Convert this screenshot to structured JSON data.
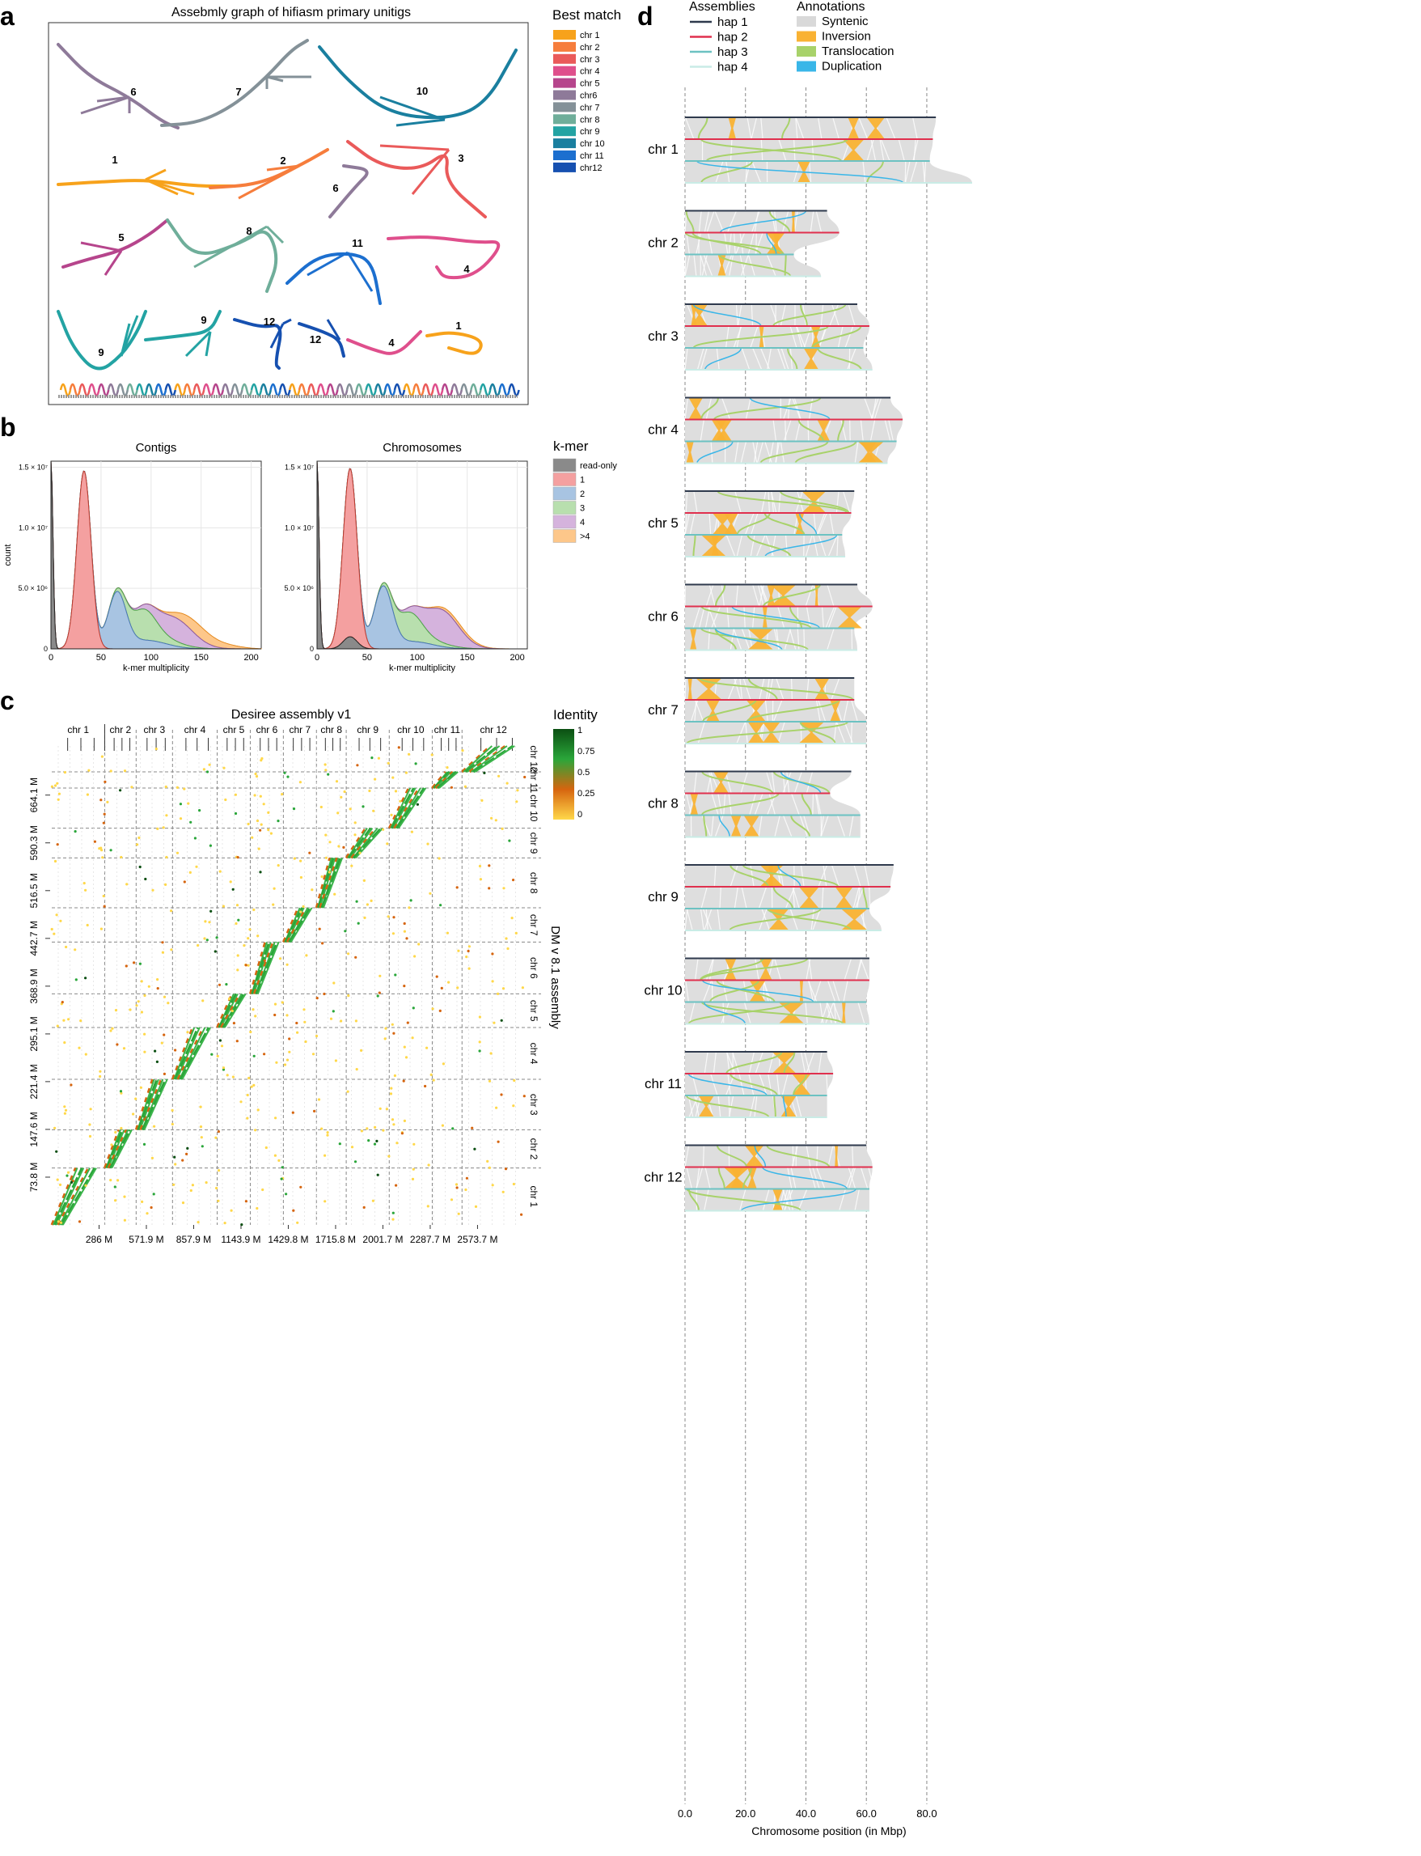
{
  "panel_labels": {
    "a": "a",
    "b": "b",
    "c": "c",
    "d": "d"
  },
  "colors": {
    "chr_palette": [
      "#f7a21b",
      "#f67d3c",
      "#ea5a5a",
      "#df4f8c",
      "#b6458c",
      "#8e7a99",
      "#849198",
      "#6fae9a",
      "#23a3a3",
      "#1a7f9f",
      "#1c6fcf",
      "#1650b0"
    ]
  },
  "chart_data": [
    {
      "panel": "a",
      "type": "other",
      "title": "Assebmly graph of hifiasm primary unitigs",
      "legend_title": "Best match",
      "legend": [
        "chr 1",
        "chr 2",
        "chr 3",
        "chr 4",
        "chr 5",
        "chr6",
        "chr 7",
        "chr 8",
        "chr 9",
        "chr 10",
        "chr 11",
        "chr12"
      ],
      "component_labels": [
        {
          "text": "6",
          "chr": 6
        },
        {
          "text": "7",
          "chr": 7
        },
        {
          "text": "10",
          "chr": 10
        },
        {
          "text": "1",
          "chr": 1
        },
        {
          "text": "2",
          "chr": 2
        },
        {
          "text": "3",
          "chr": 3
        },
        {
          "text": "6",
          "chr": 6
        },
        {
          "text": "5",
          "chr": 5
        },
        {
          "text": "8",
          "chr": 8
        },
        {
          "text": "11",
          "chr": 11
        },
        {
          "text": "4",
          "chr": 4
        },
        {
          "text": "9",
          "chr": 9
        },
        {
          "text": "9",
          "chr": 9
        },
        {
          "text": "12",
          "chr": 12
        },
        {
          "text": "12",
          "chr": 12
        },
        {
          "text": "4",
          "chr": 4
        },
        {
          "text": "1",
          "chr": 1
        }
      ]
    },
    {
      "panel": "b",
      "type": "area",
      "title": "Contigs",
      "xlabel": "k-mer multiplicity",
      "ylabel": "count",
      "xlim": [
        0,
        210
      ],
      "ylim": [
        0,
        15500000
      ],
      "xticks": [
        "0",
        "50",
        "100",
        "150",
        "200"
      ],
      "yticks": [
        "0",
        "5.0 × 10⁶",
        "1.0 × 10⁷",
        "1.5 × 10⁷"
      ],
      "ytick_values": [
        0,
        5000000,
        10000000,
        15000000
      ],
      "series": [
        {
          "name": "read-only",
          "color": "#8a8a8a",
          "peaks": [
            [
              0,
              15500000,
              2
            ]
          ]
        },
        {
          "name": "1",
          "color": "#f4a0a0",
          "peaks": [
            [
              33,
              14700000,
              7
            ]
          ]
        },
        {
          "name": "2",
          "color": "#a8c4e2",
          "peaks": [
            [
              66,
              4500000,
              9
            ],
            [
              95,
              700000,
              20
            ]
          ]
        },
        {
          "name": "3",
          "color": "#b8dfae",
          "peaks": [
            [
              92,
              2200000,
              12
            ],
            [
              110,
              500000,
              20
            ]
          ]
        },
        {
          "name": "4",
          "color": "#d5b3dd",
          "peaks": [
            [
              125,
              1900000,
              18
            ]
          ]
        },
        {
          "name": ">4",
          "color": "#fdc78a",
          "peaks": [
            [
              145,
              1000000,
              16
            ],
            [
              175,
              250000,
              15
            ]
          ]
        }
      ]
    },
    {
      "panel": "b",
      "type": "area",
      "title": "Chromosomes",
      "xlabel": "k-mer multiplicity",
      "ylabel": "",
      "xlim": [
        0,
        210
      ],
      "ylim": [
        0,
        15500000
      ],
      "xticks": [
        "0",
        "50",
        "100",
        "150",
        "200"
      ],
      "yticks": [
        "0",
        "5.0 × 10⁶",
        "1.0 × 10⁷",
        "1.5 × 10⁷"
      ],
      "ytick_values": [
        0,
        5000000,
        10000000,
        15000000
      ],
      "series": [
        {
          "name": "read-only",
          "color": "#8a8a8a",
          "peaks": [
            [
              0,
              15500000,
              2
            ],
            [
              33,
              1000000,
              7
            ]
          ]
        },
        {
          "name": "1",
          "color": "#f4a0a0",
          "peaks": [
            [
              33,
              13900000,
              7
            ]
          ]
        },
        {
          "name": "2",
          "color": "#a8c4e2",
          "peaks": [
            [
              66,
              5000000,
              9
            ],
            [
              95,
              600000,
              20
            ]
          ]
        },
        {
          "name": "3",
          "color": "#b8dfae",
          "peaks": [
            [
              92,
              2100000,
              12
            ],
            [
              110,
              400000,
              20
            ]
          ]
        },
        {
          "name": "4",
          "color": "#d5b3dd",
          "peaks": [
            [
              125,
              2700000,
              17
            ]
          ]
        },
        {
          "name": ">4",
          "color": "#fdc78a",
          "peaks": [
            [
              140,
              300000,
              16
            ]
          ]
        }
      ],
      "legend_title": "k-mer",
      "legend": [
        "read-only",
        "1",
        "2",
        "3",
        "4",
        ">4"
      ]
    },
    {
      "panel": "c",
      "type": "scatter",
      "title": "Desiree assembly v1",
      "xlabel": "",
      "ylabel": "DM v 8.1 assembly",
      "xlim": [
        0,
        2860
      ],
      "ylim": [
        0,
        740
      ],
      "xticks": [
        "286 M",
        "571.9 M",
        "857.9 M",
        "1143.9 M",
        "1429.8 M",
        "1715.8 M",
        "2001.7 M",
        "2287.7 M",
        "2573.7 M"
      ],
      "xtick_values": [
        286,
        571.9,
        857.9,
        1143.9,
        1429.8,
        1715.8,
        2001.7,
        2287.7,
        2573.7
      ],
      "yticks": [
        "73.8 M",
        "147.6 M",
        "221.4 M",
        "295.1 M",
        "368.9 M",
        "442.7 M",
        "516.5 M",
        "590.3 M",
        "664.1 M"
      ],
      "ytick_values": [
        73.8,
        147.6,
        221.4,
        295.1,
        368.9,
        442.7,
        516.5,
        590.3,
        664.1
      ],
      "x_chr_labels": [
        "chr 1",
        "chr 2",
        "chr 3",
        "chr 4",
        "chr 5",
        "chr 6",
        "chr 7",
        "chr 8",
        "chr 9",
        "chr 10",
        "chr 11",
        "chr 12"
      ],
      "x_chr_bounds": [
        0,
        320,
        510,
        730,
        1000,
        1200,
        1400,
        1600,
        1780,
        2040,
        2300,
        2480,
        2860
      ],
      "y_chr_labels": [
        "chr 1",
        "chr 2",
        "chr 3",
        "chr 4",
        "chr 5",
        "chr 6",
        "chr 7",
        "chr 8",
        "chr 9",
        "chr 10",
        "chr 11",
        "chr 12"
      ],
      "y_chr_bounds": [
        0,
        88,
        147,
        225,
        305,
        357,
        437,
        490,
        567,
        613,
        675,
        700,
        740
      ],
      "legend_title": "Identity",
      "legend": [
        "1",
        "0.75",
        "0.5",
        "0.25",
        "0"
      ],
      "identity_colors": [
        "#0b4f12",
        "#2aa63a",
        "#d6650f",
        "#ffd84a"
      ]
    },
    {
      "panel": "d",
      "type": "other",
      "xlabel": "Chromosome position (in Mbp)",
      "xlim": [
        0,
        95
      ],
      "xticks": [
        "0.0",
        "20.0",
        "40.0",
        "60.0",
        "80.0"
      ],
      "xtick_values": [
        0,
        20,
        40,
        60,
        80
      ],
      "assemblies_title": "Assemblies",
      "assemblies": [
        {
          "name": "hap 1",
          "color": "#2f3a4d"
        },
        {
          "name": "hap 2",
          "color": "#e0304e"
        },
        {
          "name": "hap 3",
          "color": "#6cc2c2"
        },
        {
          "name": "hap 4",
          "color": "#c9ece6"
        }
      ],
      "annotations_title": "Annotations",
      "annotations": [
        {
          "name": "Syntenic",
          "color": "#d9d9d9"
        },
        {
          "name": "Inversion",
          "color": "#f9b233"
        },
        {
          "name": "Translocation",
          "color": "#a8d26a"
        },
        {
          "name": "Duplication",
          "color": "#39b6e8"
        }
      ],
      "chromosomes": [
        {
          "label": "chr 1",
          "lengths": [
            83,
            82,
            81,
            95
          ]
        },
        {
          "label": "chr 2",
          "lengths": [
            47,
            51,
            36,
            45
          ]
        },
        {
          "label": "chr 3",
          "lengths": [
            57,
            61,
            59,
            62
          ]
        },
        {
          "label": "chr 4",
          "lengths": [
            68,
            72,
            70,
            67
          ]
        },
        {
          "label": "chr 5",
          "lengths": [
            56,
            55,
            52,
            53
          ]
        },
        {
          "label": "chr 6",
          "lengths": [
            57,
            62,
            56,
            57
          ]
        },
        {
          "label": "chr 7",
          "lengths": [
            56,
            56,
            60,
            60
          ]
        },
        {
          "label": "chr 8",
          "lengths": [
            55,
            48,
            58,
            58
          ]
        },
        {
          "label": "chr 9",
          "lengths": [
            69,
            68,
            61,
            65
          ]
        },
        {
          "label": "chr 10",
          "lengths": [
            61,
            61,
            60,
            61
          ]
        },
        {
          "label": "chr 11",
          "lengths": [
            47,
            49,
            47,
            47
          ]
        },
        {
          "label": "chr 12",
          "lengths": [
            60,
            62,
            61,
            61
          ]
        }
      ]
    }
  ]
}
